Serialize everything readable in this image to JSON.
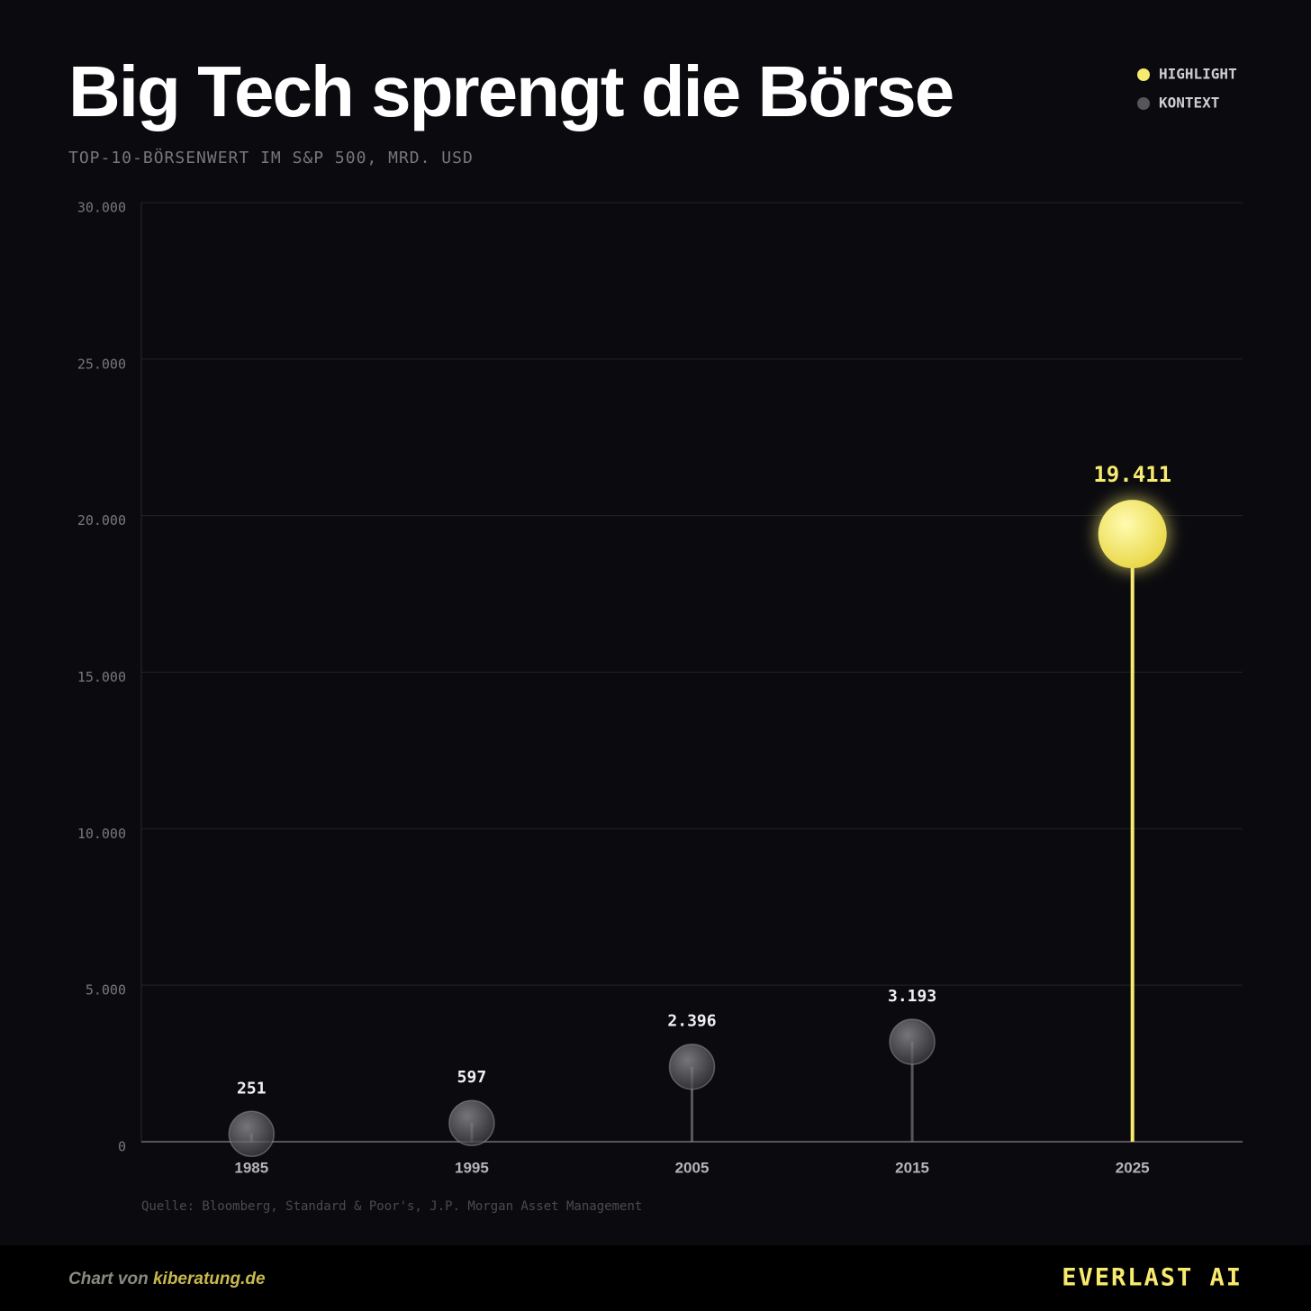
{
  "chart_data": {
    "type": "lollipop",
    "title": "Big Tech sprengt die Börse",
    "subtitle": "TOP-10-BÖRSENWERT IM S&P 500, MRD. USD",
    "categories": [
      "1985",
      "1995",
      "2005",
      "2015",
      "2025"
    ],
    "values": [
      251,
      597,
      2396,
      3193,
      19411
    ],
    "value_labels": [
      "251",
      "597",
      "2.396",
      "3.193",
      "19.411"
    ],
    "colors": [
      "#8a8a8e",
      "#8a8a8e",
      "#8a8a8e",
      "#8a8a8e",
      "#f7ea6e"
    ],
    "legend": [
      {
        "name": "HIGHLIGHT",
        "color": "#f7ea6e"
      },
      {
        "name": "KONTEXT",
        "color": "#55555a"
      }
    ],
    "ylim": [
      0,
      30000
    ],
    "yticks": [
      0,
      {
        "value": 5000,
        "label": "5.000"
      },
      {
        "value": 10000,
        "label": "10.000"
      },
      {
        "value": 15000,
        "label": "15.000"
      },
      {
        "value": 20000,
        "label": "20.000"
      },
      {
        "value": 25000,
        "label": "25.000"
      },
      {
        "value": 30000,
        "label": "30.000"
      }
    ],
    "grid": true,
    "source": "Quelle: Bloomberg, Standard & Poor's, J.P. Morgan Asset Management"
  },
  "footer": {
    "credit_prefix": "Chart von",
    "credit_site": "kiberatung.de",
    "brand": "EVERLAST AI"
  }
}
